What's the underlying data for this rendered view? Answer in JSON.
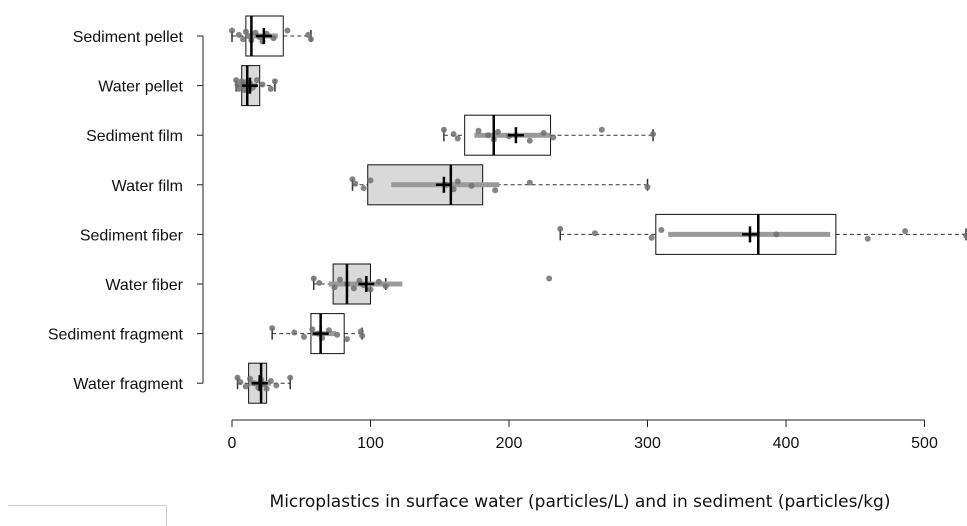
{
  "chart_data": {
    "type": "box",
    "orientation": "horizontal",
    "title": "",
    "xlabel": "Microplastics in surface water (particles/L) and in sediment (particles/kg)",
    "ylabel": "",
    "xlim": [
      0,
      530
    ],
    "xticks": [
      0,
      100,
      200,
      300,
      400,
      500
    ],
    "xtick_labels": [
      "0",
      "100",
      "200",
      "300",
      "400",
      "500"
    ],
    "grid": false,
    "legend": "none",
    "colors": {
      "water_box": "#d9d9d9",
      "sediment_box": "#ffffff",
      "points": "#707070",
      "ci_bar": "#9a9a9a",
      "outline": "#111111"
    },
    "categories": [
      "Sediment pellet",
      "Water pellet",
      "Sediment film",
      "Water film",
      "Sediment fiber",
      "Water fiber",
      "Sediment fragment",
      "Water fragment"
    ],
    "boxes": [
      {
        "name": "Sediment pellet",
        "fill": "white",
        "q1": 10,
        "median": 14,
        "q3": 37,
        "whisker_low": 0,
        "whisker_high": 57,
        "mean": 23,
        "ci": [
          14,
          33
        ],
        "points": [
          0,
          5,
          8,
          10,
          12,
          14,
          17,
          20,
          22,
          25,
          30,
          40,
          55,
          57
        ]
      },
      {
        "name": "Water pellet",
        "fill": "grey",
        "q1": 7,
        "median": 11,
        "q3": 20,
        "whisker_low": 3,
        "whisker_high": 31,
        "mean": 13,
        "ci": [
          8,
          18
        ],
        "points": [
          3,
          4,
          5,
          7,
          8,
          9,
          10,
          11,
          12,
          13,
          15,
          18,
          22,
          28,
          31
        ]
      },
      {
        "name": "Sediment film",
        "fill": "white",
        "q1": 168,
        "median": 189,
        "q3": 230,
        "whisker_low": 153,
        "whisker_high": 304,
        "mean": 205,
        "ci": [
          175,
          230
        ],
        "points": [
          153,
          160,
          163,
          178,
          185,
          189,
          192,
          200,
          215,
          225,
          232,
          267,
          304
        ]
      },
      {
        "name": "Water film",
        "fill": "grey",
        "q1": 98,
        "median": 158,
        "q3": 181,
        "whisker_low": 87,
        "whisker_high": 300,
        "mean": 153,
        "ci": [
          115,
          193
        ],
        "points": [
          87,
          89,
          95,
          100,
          155,
          160,
          163,
          173,
          190,
          215,
          300
        ]
      },
      {
        "name": "Sediment fiber",
        "fill": "white",
        "q1": 306,
        "median": 380,
        "q3": 436,
        "whisker_low": 237,
        "whisker_high": 530,
        "mean": 374,
        "ci": [
          315,
          432
        ],
        "points": [
          237,
          262,
          303,
          310,
          393,
          459,
          486,
          530
        ]
      },
      {
        "name": "Water fiber",
        "fill": "grey",
        "q1": 73,
        "median": 83,
        "q3": 100,
        "whisker_low": 59,
        "whisker_high": 111,
        "mean": 97,
        "ci": [
          70,
          123
        ],
        "points": [
          59,
          63,
          74,
          78,
          83,
          88,
          92,
          95,
          100,
          106,
          111,
          229
        ]
      },
      {
        "name": "Sediment fragment",
        "fill": "white",
        "q1": 57,
        "median": 64,
        "q3": 81,
        "whisker_low": 29,
        "whisker_high": 94,
        "mean": 64,
        "ci": [
          57,
          75
        ],
        "points": [
          29,
          45,
          52,
          58,
          62,
          65,
          70,
          76,
          83,
          93,
          94
        ]
      },
      {
        "name": "Water fragment",
        "fill": "grey",
        "q1": 12,
        "median": 21,
        "q3": 25,
        "whisker_low": 4,
        "whisker_high": 42,
        "mean": 20,
        "ci": [
          12,
          28
        ],
        "points": [
          4,
          6,
          10,
          13,
          16,
          19,
          21,
          23,
          25,
          28,
          32,
          42
        ]
      }
    ]
  }
}
